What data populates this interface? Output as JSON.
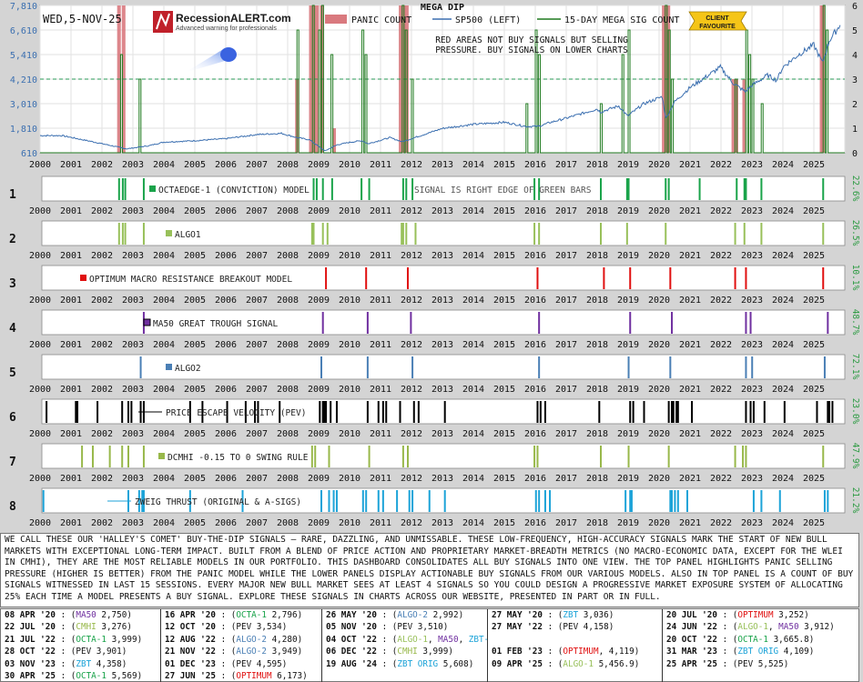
{
  "header": {
    "date": "WED,5-NOV-25",
    "logo_text": "RecessionALERT.com",
    "logo_tagline": "Advanced warning for professionals",
    "badge_line1": "CLIENT",
    "badge_line2": "FAVOURITE"
  },
  "colors": {
    "panic": "#d9797e",
    "sp500": "#3b6fb0",
    "mega": "#1f7a1f",
    "dashed": "#2a9a55",
    "octa": "#1aa34a",
    "algo1": "#98c05a",
    "optimum": "#e01010",
    "ma50": "#7030a0",
    "algo2": "#4a7fb5",
    "pev": "#000000",
    "cmhi": "#98b84a",
    "zbt": "#1ca3d8"
  },
  "chart_data": [
    {
      "type": "line",
      "title": "MEGA DIP",
      "legend": [
        "PANIC COUNT",
        "SP500 (LEFT)",
        "15-DAY MEGA SIG COUNT"
      ],
      "legend_placement": "top",
      "annotation": [
        "RED AREAS NOT BUY SIGNALS BUT SELLING",
        "PRESSURE. BUY SIGNALS ON LOWER CHARTS"
      ],
      "xlim": [
        2000,
        2026
      ],
      "x_ticks": [
        "2000",
        "2001",
        "2002",
        "2003",
        "2004",
        "2005",
        "2006",
        "2007",
        "2008",
        "2009",
        "2010",
        "2011",
        "2012",
        "2013",
        "2014",
        "2015",
        "2016",
        "2017",
        "2018",
        "2019",
        "2020",
        "2021",
        "2022",
        "2023",
        "2024",
        "2025"
      ],
      "left_axis": {
        "ticks": [
          "7,810",
          "6,610",
          "5,410",
          "4,210",
          "3,010",
          "1,810",
          "610"
        ],
        "ylim": [
          610,
          7810
        ]
      },
      "right_axis": {
        "ticks": [
          "6",
          "5",
          "4",
          "3",
          "2",
          "1",
          "0"
        ],
        "ylim": [
          0,
          6
        ]
      },
      "dashed_level_right": 3,
      "sp500": {
        "name": "SP500 (LEFT)",
        "x": [
          2000,
          2000.7,
          2001.7,
          2002.8,
          2003.5,
          2004,
          2005,
          2006,
          2007,
          2007.8,
          2008.3,
          2008.7,
          2009.2,
          2009.6,
          2010,
          2010.4,
          2010.6,
          2011.3,
          2011.7,
          2012,
          2013,
          2014,
          2015,
          2015.7,
          2016.1,
          2016.5,
          2017,
          2018,
          2018.1,
          2018.7,
          2018.98,
          2019.5,
          2020.1,
          2020.22,
          2020.5,
          2021,
          2021.98,
          2022.4,
          2022.78,
          2023,
          2023.5,
          2023.8,
          2024,
          2024.5,
          2025,
          2025.28,
          2025.5,
          2025.85
        ],
        "y": [
          1450,
          1450,
          1150,
          800,
          950,
          1130,
          1200,
          1300,
          1500,
          1560,
          1350,
          1250,
          700,
          1000,
          1120,
          1200,
          1050,
          1350,
          1150,
          1300,
          1800,
          2000,
          2100,
          1900,
          1900,
          2100,
          2300,
          2750,
          2600,
          2900,
          2400,
          3000,
          3350,
          2300,
          3100,
          3800,
          4790,
          4000,
          3600,
          3900,
          4400,
          4150,
          4800,
          5400,
          5880,
          5000,
          6100,
          6850
        ]
      },
      "panic_count": {
        "name": "PANIC COUNT",
        "x": [
          2002.55,
          2002.7,
          2008.3,
          2008.75,
          2008.85,
          2008.95,
          2009.1,
          2009.5,
          2011.65,
          2011.75,
          2011.85,
          2020.15,
          2020.22,
          2020.3,
          2022.4,
          2022.5,
          2022.75,
          2025.25,
          2025.3
        ],
        "y": [
          6,
          6,
          3,
          6,
          6,
          6,
          6,
          1,
          6,
          6,
          6,
          6,
          6,
          6,
          3,
          3,
          3,
          6,
          6
        ]
      },
      "mega_sig_count": {
        "name": "15-DAY MEGA SIG COUNT",
        "x": [
          2002.6,
          2003.2,
          2008.3,
          2008.8,
          2009.0,
          2009.1,
          2009.4,
          2010.4,
          2010.5,
          2011.7,
          2011.8,
          2012.0,
          2015.7,
          2016.0,
          2016.1,
          2018.1,
          2018.8,
          2019.0,
          2020.2,
          2020.3,
          2020.4,
          2022.45,
          2022.8,
          2022.9,
          2023.0,
          2023.3,
          2025.3,
          2025.4
        ],
        "y": [
          4,
          3,
          5,
          6,
          5,
          6,
          4,
          5,
          4,
          6,
          5,
          3,
          2,
          5,
          4,
          2,
          4,
          5,
          6,
          5,
          3,
          3,
          5,
          4,
          3,
          2,
          6,
          5
        ]
      }
    },
    {
      "type": "bar",
      "panel": "1",
      "label": "OCTAEDGE-1 (CONVICTION) MODEL",
      "note": "SIGNAL IS RIGHT EDGE OF GREEN BARS",
      "right_label": "22.6%",
      "x": [
        2002.5,
        2002.62,
        2002.7,
        2003.3,
        2008.8,
        2008.9,
        2009.1,
        2009.4,
        2010.35,
        2010.6,
        2011.7,
        2011.8,
        2012.0,
        2015.95,
        2016.1,
        2018.1,
        2018.95,
        2019.0,
        2020.2,
        2020.3,
        2021.3,
        2022.5,
        2022.75,
        2022.8,
        2023.3,
        2025.3
      ]
    },
    {
      "type": "bar",
      "panel": "2",
      "label": "ALGO1",
      "right_label": "26.5%",
      "x": [
        2002.5,
        2002.62,
        2002.7,
        2003.3,
        2008.75,
        2008.8,
        2009.1,
        2009.25,
        2011.65,
        2011.7,
        2011.8,
        2012.1,
        2015.95,
        2016.1,
        2018.1,
        2018.95,
        2020.2,
        2022.45,
        2022.75,
        2023.3,
        2025.3
      ]
    },
    {
      "type": "bar",
      "panel": "3",
      "label": "OPTIMUM MACRO RESISTANCE BREAKOUT MODEL",
      "right_label": "10.1%",
      "x": [
        2009.2,
        2010.5,
        2011.85,
        2016.05,
        2018.2,
        2019.05,
        2020.35,
        2022.45,
        2022.8,
        2025.3
      ]
    },
    {
      "type": "bar",
      "panel": "4",
      "label": "MA50 GREAT TROUGH SIGNAL",
      "right_label": "48.7%",
      "x": [
        2003.3,
        2009.1,
        2010.55,
        2011.95,
        2016.1,
        2019.05,
        2020.4,
        2022.8,
        2022.95,
        2025.45
      ]
    },
    {
      "type": "bar",
      "panel": "5",
      "label": "ALGO2",
      "right_label": "72.1%",
      "x": [
        2003.2,
        2009.05,
        2010.55,
        2012.0,
        2016.1,
        2019.0,
        2020.35,
        2022.8,
        2023.0,
        2025.35
      ]
    },
    {
      "type": "bar",
      "panel": "6",
      "label": "PRICE ESCAPE VELOCITY (PEV)",
      "right_label": "23.0%",
      "x": [
        2000.15,
        2001.1,
        2001.15,
        2001.8,
        2002.6,
        2002.8,
        2002.9,
        2003.2,
        2003.3,
        2004.8,
        2005.2,
        2006.0,
        2006.6,
        2006.9,
        2007.0,
        2007.7,
        2009.0,
        2009.1,
        2009.15,
        2009.2,
        2009.35,
        2009.55,
        2010.55,
        2010.9,
        2011.05,
        2011.15,
        2011.6,
        2012.05,
        2012.2,
        2013.05,
        2016.05,
        2016.15,
        2016.3,
        2018.05,
        2019.05,
        2019.15,
        2019.5,
        2020.3,
        2020.4,
        2020.45,
        2020.55,
        2020.6,
        2021.05,
        2022.8,
        2022.95,
        2023.05,
        2023.4,
        2024.05,
        2025.1,
        2025.45,
        2025.5,
        2025.6
      ]
    },
    {
      "type": "bar",
      "panel": "7",
      "label": "DCMHI -0.15 TO 0 SWING RULE",
      "right_label": "47.9%",
      "x": [
        2001.3,
        2001.65,
        2002.2,
        2002.6,
        2002.8,
        2003.3,
        2008.75,
        2008.85,
        2009.3,
        2010.6,
        2011.7,
        2011.85,
        2015.95,
        2016.05,
        2018.1,
        2019.0,
        2020.3,
        2022.45,
        2022.7,
        2022.8,
        2025.3
      ]
    },
    {
      "type": "bar",
      "panel": "8",
      "label": "ZWEIG THRUST (ORIGINAL & A-SIGS)",
      "right_label": "21.2%",
      "x": [
        2000.05,
        2002.8,
        2003.15,
        2003.25,
        2003.3,
        2004.8,
        2006.5,
        2009.05,
        2009.3,
        2009.45,
        2009.55,
        2010.4,
        2010.5,
        2010.9,
        2011.05,
        2011.5,
        2011.9,
        2012.0,
        2012.55,
        2013.05,
        2016.0,
        2016.1,
        2016.3,
        2016.45,
        2018.9,
        2019.05,
        2019.1,
        2020.35,
        2020.4,
        2020.5,
        2020.6,
        2020.9,
        2023.05,
        2023.3,
        2023.9,
        2025.35,
        2025.45
      ]
    }
  ],
  "description": "WE CALL THESE OUR 'HALLEY'S COMET' BUY-THE-DIP SIGNALS — RARE, DAZZLING, AND UNMISSABLE. THESE LOW-FREQUENCY, HIGH-ACCURACY SIGNALS MARK THE START OF NEW BULL MARKETS WITH EXCEPTIONAL LONG-TERM IMPACT. BUILT FROM A BLEND OF PRICE ACTION AND PROPRIETARY MARKET-BREADTH METRICS (NO MACRO-ECONOMIC DATA, EXCEPT FOR THE WLEI IN CMHI), THEY ARE THE MOST RELIABLE MODELS IN OUR PORTFOLIO. THIS DASHBOARD CONSOLIDATES ALL BUY SIGNALS INTO ONE VIEW. THE TOP PANEL HIGHLIGHTS PANIC SELLING PRESSURE (HIGHER IS BETTER) FROM THE PANIC MODEL WHILE THE LOWER PANELS DISPLAY ACTIONABLE BUY SIGNALS FROM OUR VARIOUS MODELS. ALSO IN TOP PANEL IS A COUNT OF BUY SIGNALS WITNESSED IN LAST 15 SESSIONS. EVERY MAJOR NEW BULL MARKET SEES AT LEAST 4 SIGNALS SO YOU COULD DESIGN A PROGRESSIVE MARKET EXPOSURE SYSTEM OF ALLOCATING 25% EACH TIME A MODEL PRESENTS A BUY SIGNAL. EXPLORE THESE SIGNALS IN CHARTS ACROSS OUR WEBSITE, PRESENTED IN PART OR IN FULL.",
  "signal_table": [
    [
      {
        "date": "08 APR '20",
        "items": [
          {
            "t": "MA50",
            "c": "#7030a0"
          },
          {
            "t": " 2,750",
            "c": "#111"
          }
        ]
      },
      {
        "date": "16 APR '20",
        "items": [
          {
            "t": "OCTA-1",
            "c": "#1aa34a"
          },
          {
            "t": " 2,796",
            "c": "#111"
          }
        ]
      },
      {
        "date": "26 MAY '20",
        "items": [
          {
            "t": "ALGO-2",
            "c": "#4a7fb5"
          },
          {
            "t": " 2,992",
            "c": "#111"
          }
        ]
      },
      {
        "date": "27 MAY '20",
        "items": [
          {
            "t": "ZBT",
            "c": "#1ca3d8"
          },
          {
            "t": " 3,036",
            "c": "#111"
          }
        ]
      },
      {
        "date": "20 JUL '20",
        "items": [
          {
            "t": "OPTIMUM",
            "c": "#e01010"
          },
          {
            "t": " 3,252",
            "c": "#111"
          }
        ]
      }
    ],
    [
      {
        "date": "22 JUL '20",
        "items": [
          {
            "t": "CMHI",
            "c": "#98b84a"
          },
          {
            "t": " 3,276",
            "c": "#111"
          }
        ]
      },
      {
        "date": "12 OCT '20",
        "items": [
          {
            "t": "PEV",
            "c": "#111"
          },
          {
            "t": " 3,534",
            "c": "#111"
          }
        ]
      },
      {
        "date": "05 NOV '20",
        "items": [
          {
            "t": "PEV",
            "c": "#111"
          },
          {
            "t": " 3,510",
            "c": "#111"
          }
        ]
      },
      {
        "date": "27 MAY '22",
        "items": [
          {
            "t": "PEV",
            "c": "#111"
          },
          {
            "t": " 4,158",
            "c": "#111"
          }
        ]
      },
      {
        "date": "24 JUN '22",
        "items": [
          {
            "t": "ALGO-1",
            "c": "#98c05a"
          },
          {
            "t": ", ",
            "c": "#111"
          },
          {
            "t": "MA50",
            "c": "#7030a0"
          },
          {
            "t": " 3,912",
            "c": "#111"
          }
        ]
      }
    ],
    [
      {
        "date": "21 JUL '22",
        "items": [
          {
            "t": "OCTA-1",
            "c": "#1aa34a"
          },
          {
            "t": " 3,999",
            "c": "#111"
          }
        ]
      },
      {
        "date": "12 AUG '22",
        "items": [
          {
            "t": "ALGO-2",
            "c": "#4a7fb5"
          },
          {
            "t": " 4,280",
            "c": "#111"
          }
        ]
      },
      {
        "date": "04 OCT '22",
        "items": [
          {
            "t": "ALGO-1",
            "c": "#98c05a"
          },
          {
            "t": ", ",
            "c": "#111"
          },
          {
            "t": "MA50",
            "c": "#7030a0"
          },
          {
            "t": ", ",
            "c": "#111"
          },
          {
            "t": "ZBT-A",
            "c": "#1ca3d8"
          },
          {
            "t": " 3,791",
            "c": "#111"
          }
        ]
      },
      {
        "date": "",
        "items": []
      },
      {
        "date": "20 OCT '22",
        "items": [
          {
            "t": "OCTA-1",
            "c": "#1aa34a"
          },
          {
            "t": " 3,665.8",
            "c": "#111"
          }
        ]
      }
    ],
    [
      {
        "date": "28 OCT '22",
        "items": [
          {
            "t": "PEV",
            "c": "#111"
          },
          {
            "t": " 3,901",
            "c": "#111"
          }
        ]
      },
      {
        "date": "21 NOV '22",
        "items": [
          {
            "t": "ALGO-2",
            "c": "#4a7fb5"
          },
          {
            "t": " 3,949",
            "c": "#111"
          }
        ]
      },
      {
        "date": "06 DEC '22",
        "items": [
          {
            "t": "CMHI",
            "c": "#98b84a"
          },
          {
            "t": " 3,999",
            "c": "#111"
          }
        ]
      },
      {
        "date": "01 FEB '23",
        "items": [
          {
            "t": "OPTIMUM",
            "c": "#e01010"
          },
          {
            "t": ", 4,119",
            "c": "#111"
          }
        ]
      },
      {
        "date": "31 MAR '23",
        "items": [
          {
            "t": "ZBT ORIG",
            "c": "#1ca3d8"
          },
          {
            "t": " 4,109",
            "c": "#111"
          }
        ]
      }
    ],
    [
      {
        "date": "03 NOV '23",
        "items": [
          {
            "t": "ZBT",
            "c": "#1ca3d8"
          },
          {
            "t": " 4,358",
            "c": "#111"
          }
        ]
      },
      {
        "date": "01 DEC '23",
        "items": [
          {
            "t": "PEV",
            "c": "#111"
          },
          {
            "t": " 4,595",
            "c": "#111"
          }
        ]
      },
      {
        "date": "19 AUG '24",
        "items": [
          {
            "t": "ZBT ORIG",
            "c": "#1ca3d8"
          },
          {
            "t": " 5,608",
            "c": "#111"
          }
        ]
      },
      {
        "date": "09 APR '25",
        "items": [
          {
            "t": "ALGO-1",
            "c": "#98c05a"
          },
          {
            "t": " 5,456.9",
            "c": "#111"
          }
        ]
      },
      {
        "date": "25 APR '25",
        "items": [
          {
            "t": "PEV",
            "c": "#111"
          },
          {
            "t": " 5,525",
            "c": "#111"
          }
        ]
      }
    ],
    [
      {
        "date": "30 APR '25",
        "items": [
          {
            "t": "OCTA-1",
            "c": "#1aa34a"
          },
          {
            "t": " 5,569",
            "c": "#111"
          }
        ]
      },
      {
        "date": "27 JUN '25",
        "items": [
          {
            "t": "OPTIMUM",
            "c": "#e01010"
          },
          {
            "t": " 6,173",
            "c": "#111"
          }
        ]
      },
      {
        "date": "",
        "items": []
      },
      {
        "date": "",
        "items": []
      },
      {
        "date": "",
        "items": []
      }
    ]
  ]
}
